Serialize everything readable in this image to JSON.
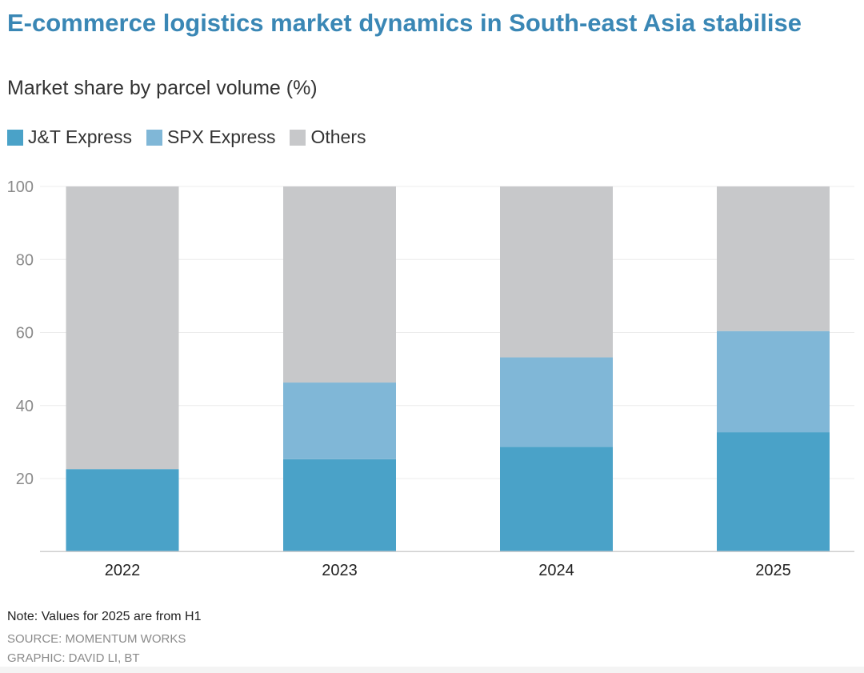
{
  "header": {
    "title": "E-commerce logistics market dynamics in South-east Asia stabilise",
    "subtitle": "Market share by parcel volume (%)"
  },
  "chart_data": {
    "type": "bar",
    "stacked": true,
    "title": "E-commerce logistics market dynamics in South-east Asia stabilise",
    "subtitle": "Market share by parcel volume (%)",
    "categories": [
      "2022",
      "2023",
      "2024",
      "2025"
    ],
    "series": [
      {
        "name": "J&T Express",
        "color": "#4aa2c8",
        "values": [
          22.6,
          25.3,
          28.7,
          32.7
        ]
      },
      {
        "name": "SPX Express",
        "color": "#80b7d7",
        "values": [
          0,
          21.0,
          24.5,
          27.7
        ]
      },
      {
        "name": "Others",
        "color": "#c7c8ca",
        "values": [
          77.4,
          53.7,
          46.8,
          39.6
        ]
      }
    ],
    "yticks": [
      20,
      40,
      60,
      80,
      100
    ],
    "ylim": [
      0,
      100
    ],
    "xlabel": "",
    "ylabel": "",
    "grid": true,
    "legend_position": "top-left"
  },
  "footer": {
    "note": "Note: Values for 2025 are from H1",
    "source": "SOURCE: MOMENTUM WORKS",
    "graphic": "GRAPHIC: DAVID LI, BT"
  }
}
